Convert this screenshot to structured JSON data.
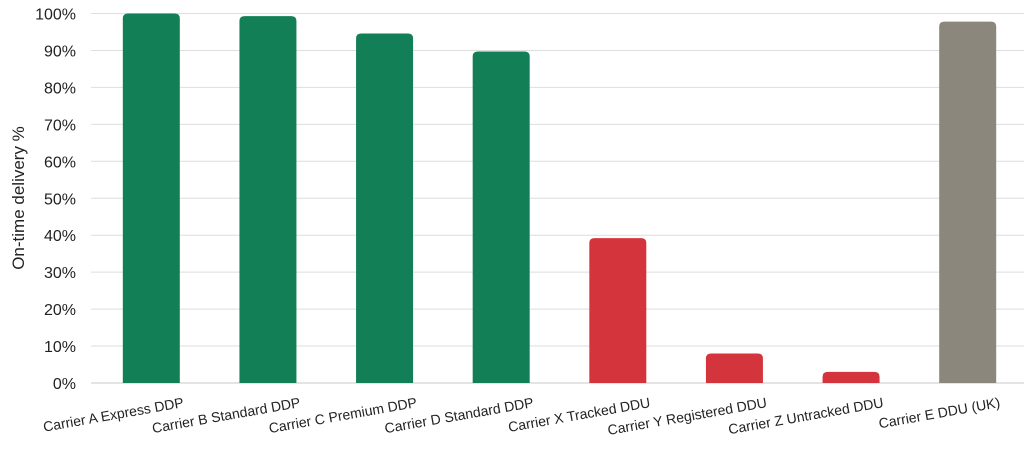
{
  "chart_data": {
    "type": "bar",
    "title": "",
    "xlabel": "",
    "ylabel": "On-time delivery %",
    "ylim": [
      0,
      100
    ],
    "yticks": [
      "0%",
      "10%",
      "20%",
      "30%",
      "40%",
      "50%",
      "60%",
      "70%",
      "80%",
      "90%",
      "100%"
    ],
    "grid": true,
    "categories": [
      "Carrier A Express DDP",
      "Carrier B Standard DDP",
      "Carrier C Premium DDP",
      "Carrier D Standard DDP",
      "Carrier X Tracked DDU",
      "Carrier Y Registered DDU",
      "Carrier Z Untracked DDU",
      "Carrier E DDU (UK)"
    ],
    "values": [
      100,
      99.3,
      94.6,
      89.7,
      39.2,
      8,
      3,
      97.8
    ],
    "bar_colors": [
      "#137f56",
      "#137f56",
      "#137f56",
      "#137f56",
      "#d4343c",
      "#d4343c",
      "#d4343c",
      "#8c877c"
    ]
  }
}
